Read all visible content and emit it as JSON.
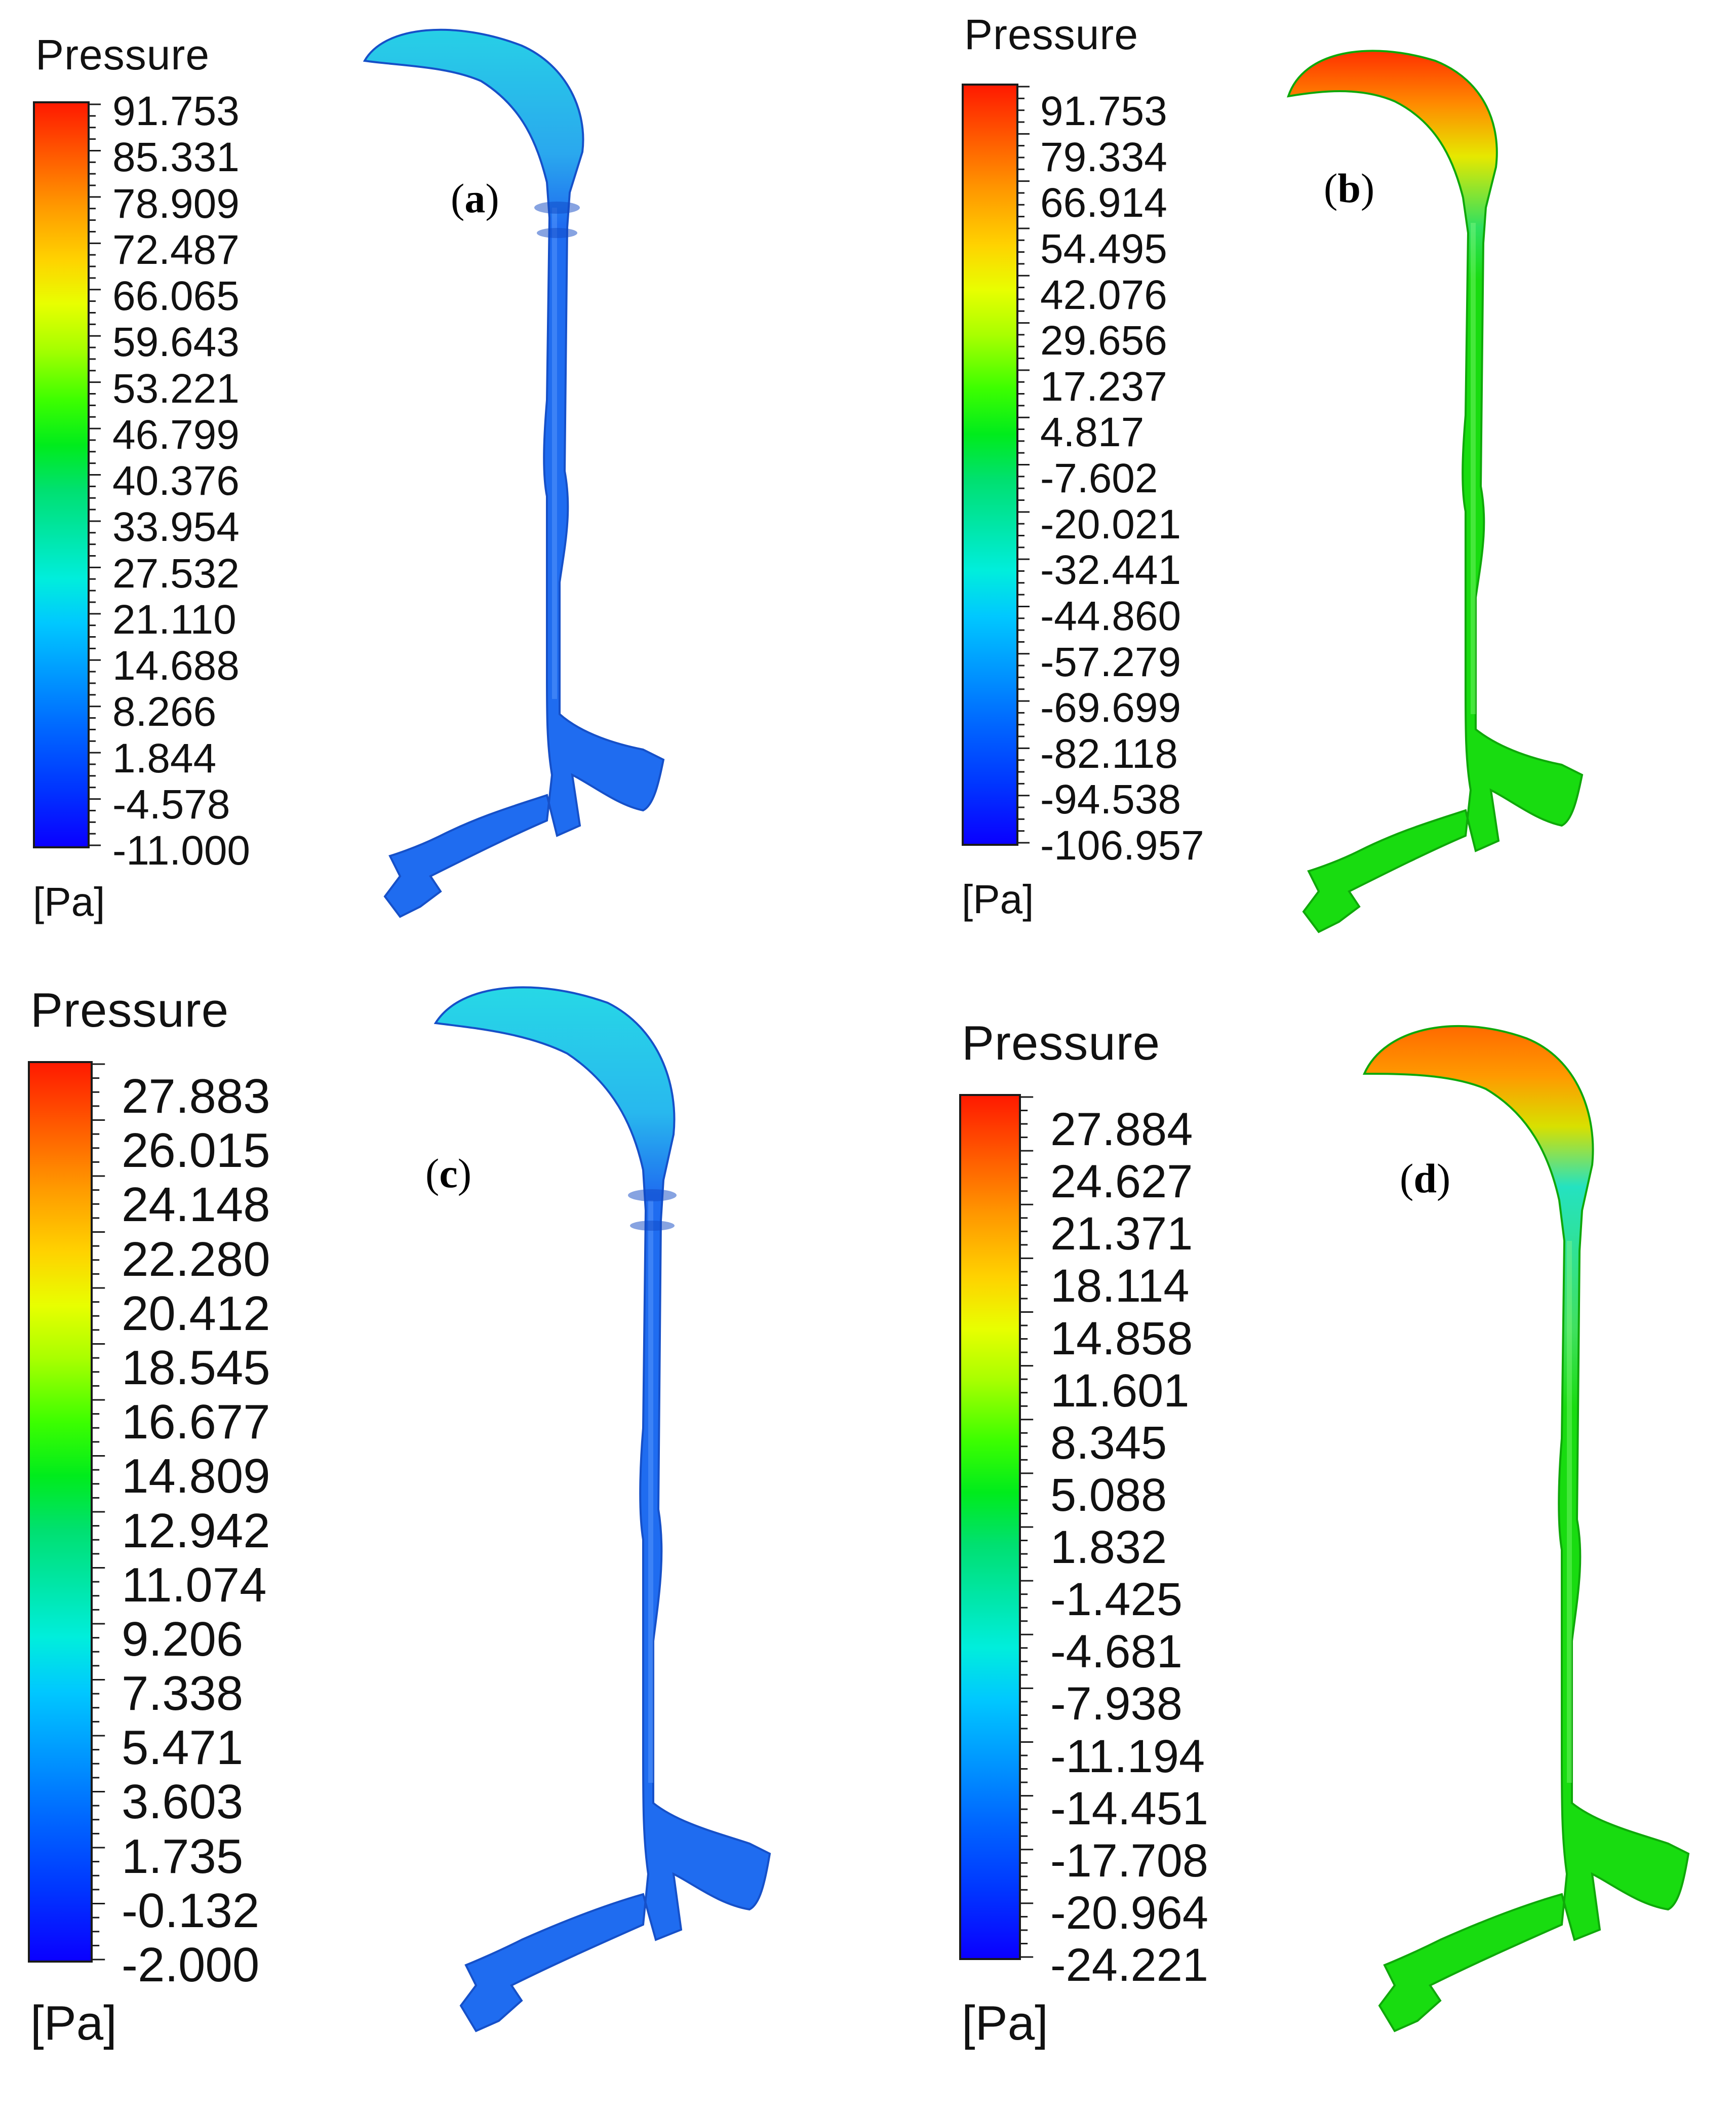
{
  "colors": {
    "blue": "#1f6cf0",
    "green": "#18dc10",
    "cyan": "#24e2dc",
    "orange": "#ff8800",
    "red": "#ff2a00",
    "yellow": "#e6e800"
  },
  "panels": [
    {
      "id": "a",
      "tag": "a",
      "legend_title": "Pressure",
      "unit": "[Pa]",
      "ticks": [
        "91.753",
        "85.331",
        "78.909",
        "72.487",
        "66.065",
        "59.643",
        "53.221",
        "46.799",
        "40.376",
        "33.954",
        "27.532",
        "21.110",
        "14.688",
        "8.266",
        "1.844",
        "-4.578",
        "-11.000"
      ],
      "contour": "uniform blue"
    },
    {
      "id": "b",
      "tag": "b",
      "legend_title": "Pressure",
      "unit": "[Pa]",
      "ticks": [
        "91.753",
        "79.334",
        "66.914",
        "54.495",
        "42.076",
        "29.656",
        "17.237",
        "4.817",
        "-7.602",
        "-20.021",
        "-32.441",
        "-44.860",
        "-57.279",
        "-69.699",
        "-82.118",
        "-94.538",
        "-106.957"
      ],
      "contour": "red/yellow upper airway, green trachea and bronchi"
    },
    {
      "id": "c",
      "tag": "c",
      "legend_title": "Pressure",
      "unit": "[Pa]",
      "ticks": [
        "27.883",
        "26.015",
        "24.148",
        "22.280",
        "20.412",
        "18.545",
        "16.677",
        "14.809",
        "12.942",
        "11.074",
        "9.206",
        "7.338",
        "5.471",
        "3.603",
        "1.735",
        "-0.132",
        "-2.000"
      ],
      "contour": "cyan upper airway, blue trachea and bronchi"
    },
    {
      "id": "d",
      "tag": "d",
      "legend_title": "Pressure",
      "unit": "[Pa]",
      "ticks": [
        "27.884",
        "24.627",
        "21.371",
        "18.114",
        "14.858",
        "11.601",
        "8.345",
        "5.088",
        "1.832",
        "-1.425",
        "-4.681",
        "-7.938",
        "-11.194",
        "-14.451",
        "-17.708",
        "-20.964",
        "-24.221"
      ],
      "contour": "orange/yellow upper airway, green trachea and bronchi"
    }
  ]
}
